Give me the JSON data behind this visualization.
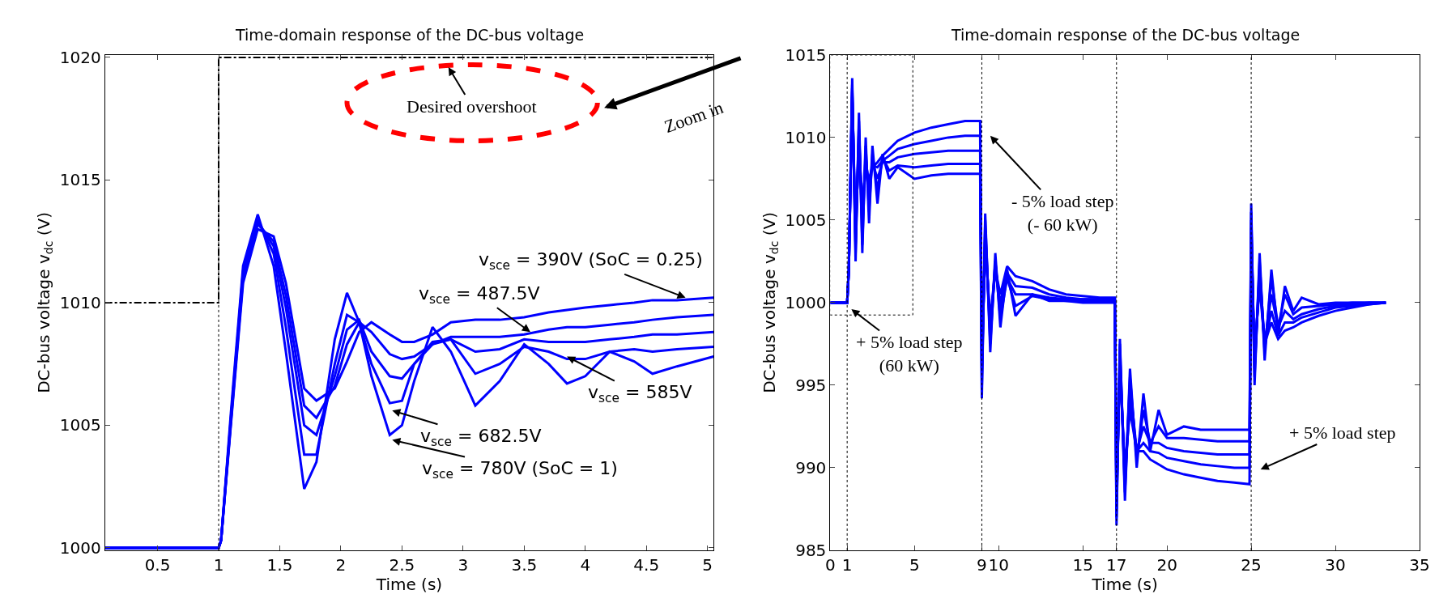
{
  "chart_data": [
    {
      "type": "line",
      "title": "Time-domain response of the DC-bus voltage",
      "xlabel": "Time (s)",
      "ylabel": "DC-bus voltage v$_{dc}$ (V)",
      "x": [
        0.07,
        1.0,
        1.02,
        1.1,
        1.2,
        1.32,
        1.45,
        1.55,
        1.7,
        1.8,
        1.95,
        2.05,
        2.15,
        2.25,
        2.4,
        2.5,
        2.6,
        2.75,
        2.9,
        3.1,
        3.3,
        3.5,
        3.7,
        3.85,
        4.0,
        4.2,
        4.4,
        4.55,
        4.75,
        5.05
      ],
      "series": [
        {
          "color": "#0000ff",
          "values": [
            1000,
            1000,
            1000.3,
            1005,
            1010.8,
            1013.0,
            1012.7,
            1010.8,
            1006.5,
            1006.0,
            1006.5,
            1007.6,
            1008.8,
            1009.2,
            1008.7,
            1008.4,
            1008.4,
            1008.7,
            1009.2,
            1009.3,
            1009.3,
            1009.4,
            1009.6,
            1009.7,
            1009.8,
            1009.9,
            1010.0,
            1010.1,
            1010.1,
            1010.2
          ]
        },
        {
          "color": "#0000ff",
          "values": [
            1000,
            1000,
            1000.3,
            1005.1,
            1011,
            1013.2,
            1012.5,
            1010.3,
            1005.8,
            1005.3,
            1006.6,
            1008.3,
            1009.2,
            1008.8,
            1007.9,
            1007.7,
            1007.8,
            1008.3,
            1008.6,
            1008.6,
            1008.6,
            1008.7,
            1008.9,
            1009.0,
            1009.0,
            1009.1,
            1009.2,
            1009.3,
            1009.4,
            1009.5
          ]
        },
        {
          "color": "#0000ff",
          "values": [
            1000,
            1000,
            1000.3,
            1005.2,
            1011.2,
            1013.3,
            1012.3,
            1009.8,
            1005,
            1004.6,
            1007,
            1008.9,
            1009.3,
            1008,
            1007,
            1006.9,
            1007.5,
            1008.3,
            1008.5,
            1008.0,
            1008.1,
            1008.5,
            1008.4,
            1008.4,
            1008.4,
            1008.5,
            1008.6,
            1008.7,
            1008.7,
            1008.8
          ]
        },
        {
          "color": "#0000ff",
          "values": [
            1000,
            1000,
            1000.3,
            1005.3,
            1011.3,
            1013.4,
            1012,
            1009,
            1003.8,
            1003.8,
            1007.5,
            1009.5,
            1009.2,
            1007.5,
            1005.9,
            1006,
            1007.5,
            1008.4,
            1008.5,
            1007.1,
            1007.5,
            1008.2,
            1008.0,
            1007.7,
            1007.7,
            1008.0,
            1008.1,
            1008.0,
            1008.1,
            1008.2
          ]
        },
        {
          "color": "#0000ff",
          "values": [
            1000,
            1000,
            1000.3,
            1005.5,
            1011.5,
            1013.6,
            1011.5,
            1008,
            1002.4,
            1003.5,
            1008.5,
            1010.4,
            1009.2,
            1007,
            1004.6,
            1005.0,
            1006.8,
            1009.0,
            1008.0,
            1005.8,
            1006.8,
            1008.3,
            1007.5,
            1006.7,
            1007.0,
            1008.0,
            1007.6,
            1007.1,
            1007.4,
            1007.8
          ]
        },
        {
          "type": "step",
          "color": "#000000",
          "line_style": "dashed",
          "x": [
            0.07,
            1,
            5.05
          ],
          "values": [
            1010,
            1020,
            1020
          ]
        }
      ],
      "ref_lines": [
        {
          "axis": "x",
          "value": 1,
          "color": "#000000",
          "line_style": "dotted"
        }
      ],
      "annotations": [
        "Desired overshoot",
        {
          "text": "v$_{sce}$ = 390V (SoC = 0.25)",
          "x": 4.82,
          "y": 1010.2
        },
        {
          "text": "v$_{sce}$ = 487.5V",
          "x": 3.55,
          "y": 1008.8
        },
        {
          "text": "v$_{sce}$ = 585V",
          "x": 3.85,
          "y": 1007.8
        },
        "v$_{sce}$ = 682.5V",
        "v$_{sce}$ = 780V (SoC = 1)"
      ],
      "xlim": [
        0.07,
        5.05
      ],
      "ylim": [
        999.9,
        1020.1
      ],
      "xticks": [
        0.5,
        1,
        1.5,
        2,
        2.5,
        3,
        3.5,
        4,
        4.5,
        5
      ],
      "yticks": [
        1000,
        1005,
        1010,
        1015,
        1020
      ]
    },
    {
      "type": "line",
      "title": "Time-domain response of the DC-bus voltage",
      "xlabel": "Time (s)",
      "ylabel": "DC-bus voltage v$_{dc}$ (V)",
      "x": [
        0,
        1,
        1.1,
        1.3,
        1.5,
        1.7,
        1.9,
        2.1,
        2.3,
        2.5,
        2.8,
        3.1,
        3.5,
        4,
        5,
        6,
        7,
        8,
        8.9,
        9.0,
        9.2,
        9.5,
        9.8,
        10.1,
        10.5,
        11,
        12,
        13,
        14,
        15,
        16,
        16.9,
        17.0,
        17.2,
        17.5,
        17.8,
        18.2,
        18.6,
        19,
        19.5,
        20,
        21,
        22,
        23,
        24,
        24.9,
        25.0,
        25.2,
        25.5,
        25.8,
        26.2,
        26.6,
        27,
        27.5,
        28,
        29,
        30,
        31,
        32,
        33
      ],
      "series": [
        {
          "color": "#0000ff",
          "values": [
            1000,
            1000,
            1002,
            1012.5,
            1004.5,
            1009.5,
            1006,
            1008,
            1007.5,
            1008.2,
            1008.5,
            1008.9,
            1009.3,
            1009.8,
            1010.3,
            1010.6,
            1010.8,
            1011.0,
            1011.0,
            996.5,
            1003.5,
            999,
            1002,
            1000.5,
            1002.2,
            1001.6,
            1001.3,
            1000.8,
            1000.5,
            1000.4,
            1000.3,
            1000.3,
            988.5,
            996,
            990,
            993.5,
            991,
            991,
            990.5,
            990.2,
            989.9,
            989.6,
            989.4,
            989.2,
            989.1,
            989.0,
            1004,
            997,
            1001,
            997.5,
            998.8,
            997.8,
            998.3,
            998.5,
            998.8,
            999.2,
            999.5,
            999.7,
            999.9,
            1000
          ]
        },
        {
          "color": "#0000ff",
          "values": [
            1000,
            1000,
            1002,
            1012.8,
            1004,
            1010,
            1005.5,
            1008.5,
            1007.2,
            1008.3,
            1008.2,
            1008.6,
            1008.9,
            1009.3,
            1009.6,
            1009.8,
            1010.0,
            1010.1,
            1010.1,
            996,
            1004,
            998.5,
            1002,
            1000,
            1001.8,
            1001,
            1000.9,
            1000.5,
            1000.3,
            1000.2,
            1000.2,
            1000.2,
            988,
            996.5,
            989.5,
            994,
            991,
            991.5,
            991,
            990.9,
            990.6,
            990.4,
            990.2,
            990.1,
            990.0,
            990.0,
            1004.5,
            996.5,
            1001.5,
            997.5,
            999.5,
            998,
            998.8,
            998.8,
            999.1,
            999.4,
            999.7,
            999.8,
            999.9,
            1000
          ]
        },
        {
          "color": "#0000ff",
          "values": [
            1000,
            1000,
            1002,
            1013,
            1003.5,
            1010.5,
            1004.5,
            1009,
            1006.5,
            1008.5,
            1007.5,
            1008.5,
            1008.5,
            1008.8,
            1009.0,
            1009.1,
            1009.2,
            1009.2,
            1009.2,
            995.5,
            1004.5,
            998,
            1002.5,
            999.5,
            1001.5,
            1000.5,
            1000.5,
            1000.3,
            1000.2,
            1000.2,
            1000.2,
            1000.2,
            987.5,
            997,
            989,
            995,
            991,
            992.5,
            991.5,
            991.5,
            991.2,
            991,
            990.9,
            990.8,
            990.8,
            990.8,
            1005,
            996,
            1002,
            997.5,
            1000.5,
            998.5,
            999.5,
            999.0,
            999.3,
            999.6,
            999.8,
            999.9,
            1000,
            1000
          ]
        },
        {
          "color": "#0000ff",
          "values": [
            1000,
            1000,
            1002,
            1013.2,
            1003,
            1011,
            1003.5,
            1009.5,
            1005.5,
            1009,
            1006.8,
            1008.8,
            1008,
            1008.3,
            1008.2,
            1008.3,
            1008.4,
            1008.4,
            1008.4,
            994.8,
            1005,
            997.5,
            1002.5,
            999,
            1001.5,
            999.8,
            1000.4,
            1000.2,
            1000.1,
            1000.1,
            1000.1,
            1000.1,
            987,
            997.5,
            988.5,
            995.5,
            990.5,
            993.5,
            991.5,
            992.5,
            991.8,
            991.8,
            991.7,
            991.6,
            991.6,
            991.6,
            1005.5,
            995.5,
            1002.5,
            997,
            1001.5,
            998.5,
            1000.5,
            999.3,
            999.7,
            999.8,
            999.9,
            1000,
            1000,
            1000
          ]
        },
        {
          "color": "#0000ff",
          "values": [
            1000,
            1000,
            1002,
            1013.6,
            1002.5,
            1011.5,
            1003,
            1010,
            1004.8,
            1009.5,
            1006,
            1009,
            1007.5,
            1008.2,
            1007.5,
            1007.7,
            1007.8,
            1007.8,
            1007.8,
            994.2,
            1005.4,
            997,
            1003,
            998.5,
            1002,
            999.2,
            1000.5,
            1000.1,
            1000.1,
            1000.0,
            1000.0,
            1000.0,
            986.5,
            997.8,
            988,
            996,
            990,
            994.5,
            991,
            993.5,
            992,
            992.5,
            992.3,
            992.3,
            992.3,
            992.3,
            1006,
            995,
            1003,
            996.5,
            1002,
            998,
            1001,
            999.5,
            1000.3,
            999.9,
            1000.0,
            1000.0,
            1000.0,
            1000.0
          ]
        }
      ],
      "ref_lines": [
        {
          "axis": "x",
          "value": 1,
          "color": "#000000",
          "line_style": "dotted"
        },
        {
          "axis": "x",
          "value": 9,
          "color": "#000000",
          "line_style": "dotted"
        },
        {
          "axis": "x",
          "value": 17,
          "color": "#000000",
          "line_style": "dotted"
        },
        {
          "axis": "x",
          "value": 25,
          "color": "#000000",
          "line_style": "dotted"
        }
      ],
      "annotations": [
        "- 5% load step\n(- 60 kW)",
        "+ 5% load step\n(60 kW)",
        "+ 5% load step",
        "Zoom in"
      ],
      "xlim": [
        0,
        35
      ],
      "ylim": [
        985,
        1015
      ],
      "xticks": [
        0,
        1,
        5,
        9,
        10,
        15,
        17,
        20,
        25,
        30,
        35
      ],
      "yticks": [
        985,
        990,
        995,
        1000,
        1005,
        1010,
        1015
      ]
    }
  ]
}
